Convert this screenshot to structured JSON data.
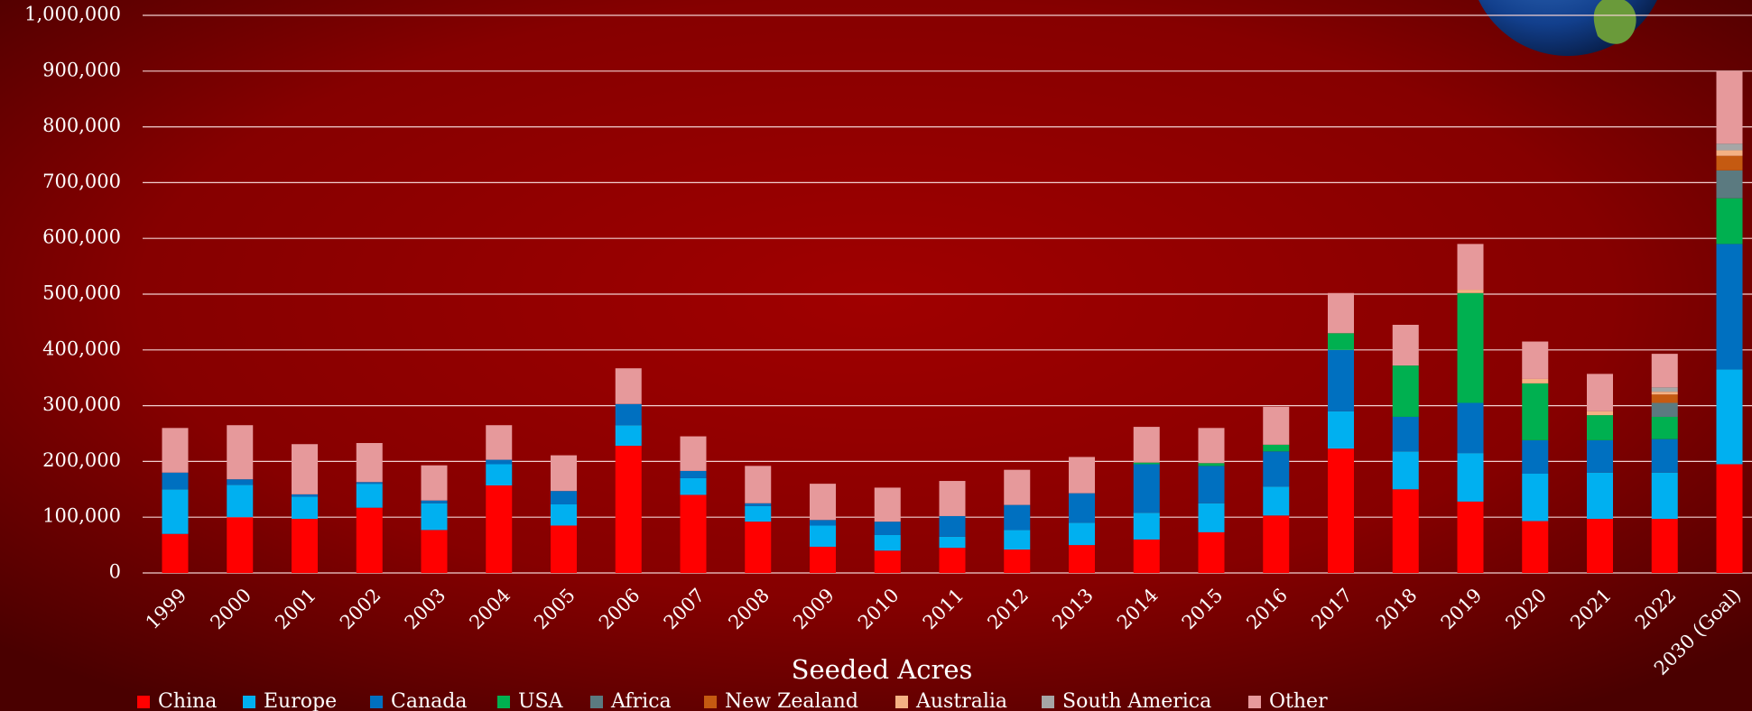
{
  "chart_data": {
    "type": "stacked-bar",
    "x_label": "Seeded Acres",
    "categories": [
      "1999",
      "2000",
      "2001",
      "2002",
      "2003",
      "2004",
      "2005",
      "2006",
      "2007",
      "2008",
      "2009",
      "2010",
      "2011",
      "2012",
      "2013",
      "2014",
      "2015",
      "2016",
      "2017",
      "2018",
      "2019",
      "2020",
      "2021",
      "2022",
      "2030 (Goal)"
    ],
    "series": [
      {
        "name": "China",
        "color": "#ff0000",
        "values": [
          70000,
          100000,
          97000,
          117000,
          77000,
          157000,
          85000,
          228000,
          140000,
          92000,
          47000,
          40000,
          45000,
          42000,
          50000,
          60000,
          73000,
          103000,
          223000,
          150000,
          128000,
          93000,
          97000,
          97000,
          195000
        ]
      },
      {
        "name": "Europe",
        "color": "#00b0f0",
        "values": [
          80000,
          58000,
          40000,
          43000,
          48000,
          38000,
          38000,
          37000,
          30000,
          28000,
          38000,
          28000,
          20000,
          35000,
          40000,
          48000,
          52000,
          52000,
          67000,
          68000,
          87000,
          85000,
          83000,
          83000,
          170000
        ]
      },
      {
        "name": "Canada",
        "color": "#0070c0",
        "values": [
          30000,
          10000,
          4000,
          3000,
          5000,
          8000,
          24000,
          38000,
          13000,
          5000,
          10000,
          24000,
          37000,
          45000,
          53000,
          87000,
          67000,
          63000,
          110000,
          62000,
          90000,
          60000,
          58000,
          60000,
          225000
        ]
      },
      {
        "name": "USA",
        "color": "#00b050",
        "values": [
          null,
          null,
          null,
          null,
          null,
          null,
          null,
          null,
          null,
          null,
          null,
          null,
          null,
          null,
          null,
          3000,
          5000,
          12000,
          30000,
          92000,
          197000,
          102000,
          45000,
          40000,
          82000
        ]
      },
      {
        "name": "Africa",
        "color": "#5b7a80",
        "values": [
          null,
          null,
          null,
          null,
          null,
          null,
          null,
          null,
          null,
          null,
          null,
          null,
          null,
          null,
          null,
          null,
          null,
          null,
          null,
          null,
          null,
          null,
          null,
          25000,
          50000
        ]
      },
      {
        "name": "New Zealand",
        "color": "#c55a11",
        "values": [
          null,
          null,
          null,
          null,
          null,
          null,
          null,
          null,
          null,
          null,
          null,
          null,
          null,
          null,
          null,
          null,
          null,
          null,
          null,
          null,
          null,
          null,
          null,
          15000,
          26000
        ]
      },
      {
        "name": "Australia",
        "color": "#f4b183",
        "values": [
          null,
          null,
          null,
          null,
          null,
          null,
          null,
          null,
          null,
          null,
          null,
          null,
          null,
          null,
          null,
          null,
          null,
          null,
          null,
          null,
          6000,
          8000,
          7000,
          5000,
          10000
        ]
      },
      {
        "name": "South America",
        "color": "#a6a6a6",
        "values": [
          null,
          null,
          null,
          null,
          null,
          null,
          null,
          null,
          null,
          null,
          null,
          null,
          null,
          null,
          null,
          null,
          null,
          null,
          null,
          null,
          null,
          null,
          null,
          8000,
          12000
        ]
      },
      {
        "name": "Other",
        "color": "#e6999b",
        "values": [
          80000,
          97000,
          90000,
          70000,
          63000,
          62000,
          64000,
          64000,
          62000,
          67000,
          65000,
          61000,
          63000,
          63000,
          65000,
          64000,
          63000,
          68000,
          72000,
          73000,
          82000,
          67000,
          67000,
          60000,
          130000
        ]
      }
    ],
    "ylim": [
      0,
      1000000
    ],
    "yticks": [
      0,
      {
        "value": 100000,
        "label": "100,000"
      },
      {
        "value": 200000,
        "label": "200,000"
      },
      {
        "value": 300000,
        "label": "300,000"
      },
      {
        "value": 400000,
        "label": "400,000"
      },
      {
        "value": 500000,
        "label": "500,000"
      },
      {
        "value": 600000,
        "label": "600,000"
      },
      {
        "value": 700000,
        "label": "700,000"
      },
      {
        "value": 800000,
        "label": "800,000"
      },
      {
        "value": 900000,
        "label": "900,000"
      },
      {
        "value": 1000000,
        "label": "1,000,000"
      }
    ],
    "grid": true,
    "legend": "bottom"
  }
}
